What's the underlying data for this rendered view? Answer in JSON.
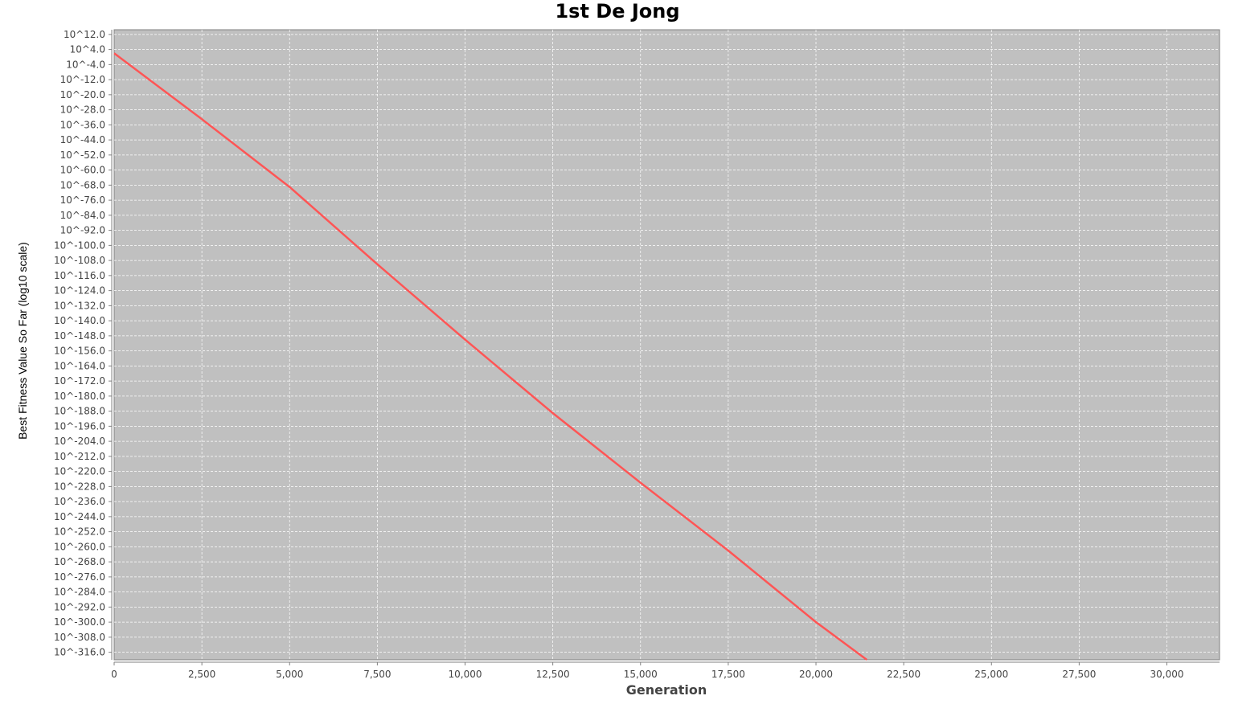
{
  "chart_data": {
    "type": "line",
    "title": "1st De Jong",
    "xlabel": "Generation",
    "ylabel": "Best Fitness Value So Far (log10 scale)",
    "xlim": [
      0,
      31500
    ],
    "xticks": [
      0,
      2500,
      5000,
      7500,
      10000,
      12500,
      15000,
      17500,
      20000,
      22500,
      25000,
      27500,
      30000
    ],
    "xtick_labels": [
      "0",
      "2,500",
      "5,000",
      "7,500",
      "10,000",
      "12,500",
      "15,000",
      "17,500",
      "20,000",
      "22,500",
      "25,000",
      "27,500",
      "30,000"
    ],
    "ylim_log10": [
      -320.0,
      14.5
    ],
    "yticks_log10": [
      12,
      4,
      -4,
      -12,
      -20,
      -28,
      -36,
      -44,
      -52,
      -60,
      -68,
      -76,
      -84,
      -92,
      -100,
      -108,
      -116,
      -124,
      -132,
      -140,
      -148,
      -156,
      -164,
      -172,
      -180,
      -188,
      -196,
      -204,
      -212,
      -220,
      -228,
      -236,
      -244,
      -252,
      -260,
      -268,
      -276,
      -284,
      -292,
      -300,
      -308,
      -316
    ],
    "ytick_labels": [
      "10^12.0",
      "10^4.0",
      "10^-4.0",
      "10^-12.0",
      "10^-20.0",
      "10^-28.0",
      "10^-36.0",
      "10^-44.0",
      "10^-52.0",
      "10^-60.0",
      "10^-68.0",
      "10^-76.0",
      "10^-84.0",
      "10^-92.0",
      "10^-100.0",
      "10^-108.0",
      "10^-116.0",
      "10^-124.0",
      "10^-132.0",
      "10^-140.0",
      "10^-148.0",
      "10^-156.0",
      "10^-164.0",
      "10^-172.0",
      "10^-180.0",
      "10^-188.0",
      "10^-196.0",
      "10^-204.0",
      "10^-212.0",
      "10^-220.0",
      "10^-228.0",
      "10^-236.0",
      "10^-244.0",
      "10^-252.0",
      "10^-260.0",
      "10^-268.0",
      "10^-276.0",
      "10^-284.0",
      "10^-292.0",
      "10^-300.0",
      "10^-308.0",
      "10^-316.0"
    ],
    "grid": true,
    "colors": {
      "plot_background": "#c0c0c0",
      "grid": "#ffffff",
      "line": "#ff5555"
    },
    "series": [
      {
        "x": [
          0,
          2500,
          5000,
          7500,
          10000,
          12500,
          15000,
          17500,
          20000,
          21450
        ],
        "y_log10": [
          2.0,
          -33.0,
          -69.0,
          -110.0,
          -150.0,
          -189.0,
          -226.0,
          -262.0,
          -300.0,
          -320.0
        ]
      }
    ]
  }
}
